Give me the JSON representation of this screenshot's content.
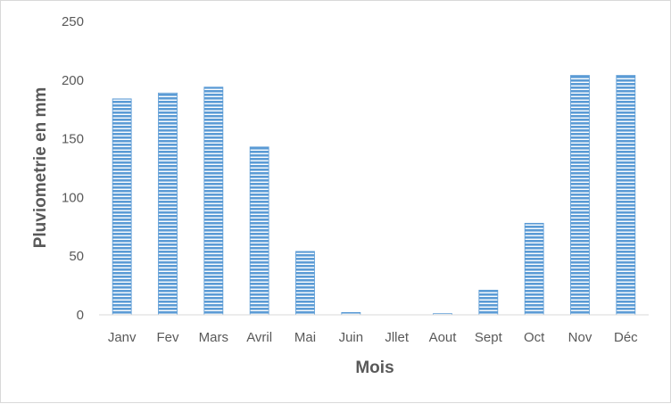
{
  "chart_data": {
    "type": "bar",
    "title": "",
    "xlabel": "Mois",
    "ylabel": "Pluviometrie  en mm",
    "categories": [
      "Janv",
      "Fev",
      "Mars",
      "Avril",
      "Mai",
      "Juin",
      "Jllet",
      "Aout",
      "Sept",
      "Oct",
      "Nov",
      "Déc"
    ],
    "values": [
      184,
      189,
      194,
      143,
      54,
      2,
      0,
      1,
      21,
      78,
      204,
      204
    ],
    "ylim": [
      0,
      250
    ],
    "yticks": [
      0,
      50,
      100,
      150,
      200,
      250
    ],
    "grid": false,
    "legend": "none",
    "bar_color": "#5b9bd5",
    "bar_pattern": "horizontal stripes"
  }
}
